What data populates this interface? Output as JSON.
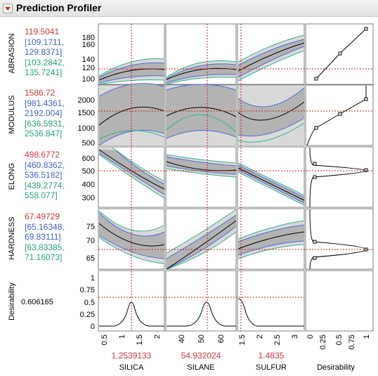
{
  "title": "Prediction Profiler",
  "responses": [
    {
      "name": "ABRASION",
      "pred": "119.5041",
      "ci1": "[109.1711,",
      "ci2": "129.8371]",
      "pi1": "[103.2842,",
      "pi2": "135.7241]",
      "yticks": [
        "180",
        "160",
        "140",
        "120",
        "100"
      ]
    },
    {
      "name": "MODULUS",
      "pred": "1586.72",
      "ci1": "[981.4361,",
      "ci2": "2192.004]",
      "pi1": "[636.5931,",
      "pi2": "2536.847]",
      "yticks": [
        "2000",
        "1500",
        "1000",
        "500"
      ]
    },
    {
      "name": "ELONG",
      "pred": "498.6772",
      "ci1": "[460.8362,",
      "ci2": "536.5182]",
      "pi1": "[439.2774,",
      "pi2": "558.077]",
      "yticks": [
        "600",
        "500",
        "400",
        "300"
      ]
    },
    {
      "name": "HARDNESS",
      "pred": "67.49729",
      "ci1": "[65.16348,",
      "ci2": "69.83111]",
      "pi1": "[63.83385,",
      "pi2": "71.16073]",
      "yticks": [
        "75",
        "70",
        "65"
      ]
    }
  ],
  "desirability": {
    "label": "Desirability",
    "value": "0.606165",
    "yticks": [
      "1",
      "0.75",
      "0.5",
      "0.25",
      "0"
    ]
  },
  "factors": [
    {
      "name": "SILICA",
      "value": "1.2539133",
      "ticks": [
        "0.5",
        "1",
        "1.5",
        "2"
      ]
    },
    {
      "name": "SILANE",
      "value": "54.932024",
      "ticks": [
        "40",
        "50",
        "60"
      ]
    },
    {
      "name": "SULFUR",
      "value": "1.4835",
      "ticks": [
        "1.5",
        "2",
        "2.5",
        "3"
      ]
    }
  ],
  "desirability_axis": {
    "label": "Desirability",
    "ticks": [
      "0",
      "0.25",
      "0.5",
      "0.75",
      "1"
    ]
  }
}
